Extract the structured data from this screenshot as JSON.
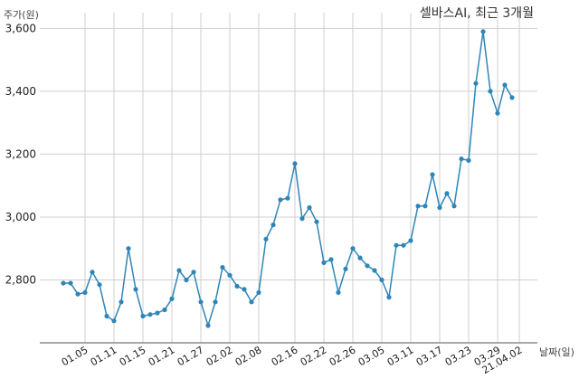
{
  "chart_data": {
    "type": "line",
    "title": "셀바스AI, 최근 3개월",
    "ylabel": "주가(원)",
    "xlabel": "날짜(일)",
    "ylim": [
      2600,
      3650
    ],
    "yticks": [
      2800,
      3000,
      3200,
      3400,
      3600
    ],
    "ytick_labels": [
      "2,800",
      "3,000",
      "3,200",
      "3,400",
      "3,600"
    ],
    "xtick_labels": [
      "01.05",
      "01.11",
      "01.15",
      "01.21",
      "01.27",
      "02.02",
      "02.08",
      "02.16",
      "02.22",
      "02.26",
      "03.05",
      "03.11",
      "03.17",
      "03.23",
      "03.29",
      "21.04.02"
    ],
    "xtick_index": [
      3,
      7,
      11,
      15,
      19,
      23,
      27,
      32,
      36,
      40,
      44,
      48,
      52,
      56,
      60,
      63
    ],
    "grid": true,
    "colors": {
      "line": "#2e86b8",
      "grid": "#cfcfcf",
      "axis": "#555555"
    },
    "series": [
      {
        "values": [
          2790,
          2790,
          2755,
          2760,
          2825,
          2785,
          2685,
          2670,
          2730,
          2900,
          2770,
          2685,
          2690,
          2695,
          2705,
          2740,
          2830,
          2800,
          2825,
          2730,
          2655,
          2730,
          2840,
          2815,
          2780,
          2770,
          2730,
          2760,
          2930,
          2975,
          3055,
          3060,
          3170,
          2995,
          3030,
          2985,
          2855,
          2865,
          2760,
          2835,
          2900,
          2870,
          2845,
          2830,
          2800,
          2745,
          2910,
          2910,
          2925,
          3035,
          3035,
          3135,
          3030,
          3075,
          3035,
          3185,
          3180,
          3425,
          3590,
          3400,
          3330,
          3420,
          3380
        ]
      }
    ]
  }
}
